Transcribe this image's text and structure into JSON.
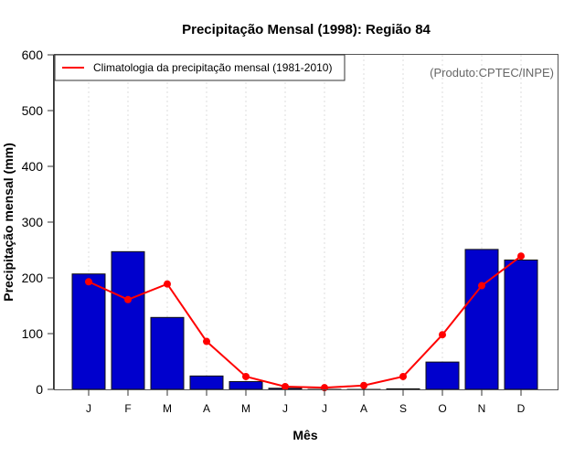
{
  "chart_data": {
    "type": "bar",
    "title": "Precipitação Mensal (1998): Região 84",
    "xlabel": "Mês",
    "ylabel": "Precipitação mensal (mm)",
    "ylim": [
      0,
      600
    ],
    "yticks": [
      0,
      100,
      200,
      300,
      400,
      500,
      600
    ],
    "grid": "vertical dotted",
    "categories": [
      "J",
      "F",
      "M",
      "A",
      "M",
      "J",
      "J",
      "A",
      "S",
      "O",
      "N",
      "D"
    ],
    "series": [
      {
        "name": "Precipitação mensal (1998)",
        "type": "bar",
        "color": "#0000CD",
        "values": [
          207,
          247,
          129,
          24,
          14,
          2,
          0,
          0,
          1,
          49,
          251,
          232
        ]
      },
      {
        "name": "Climatologia da precipitação mensal (1981-2010)",
        "type": "line",
        "color": "#FF0000",
        "values": [
          193,
          161,
          189,
          86,
          23,
          5,
          3,
          7,
          23,
          98,
          186,
          239
        ]
      }
    ],
    "legend": {
      "position": "top-left",
      "entries": [
        "Climatologia da precipitação mensal (1981-2010)"
      ]
    },
    "annotation": "(Produto:CPTEC/INPE)"
  }
}
